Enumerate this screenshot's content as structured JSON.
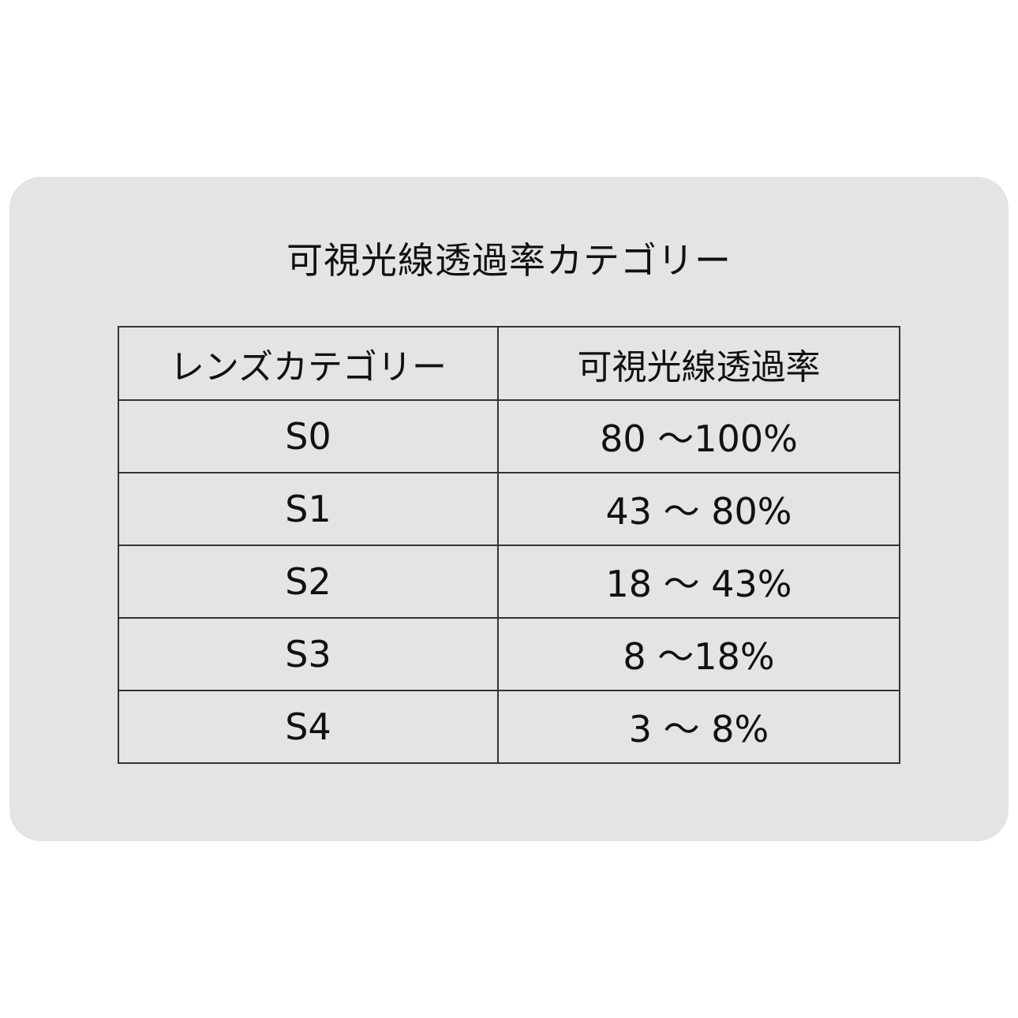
{
  "title": "可視光線透過率カテゴリー",
  "table": {
    "headers": [
      "レンズカテゴリー",
      "可視光線透過率"
    ],
    "rows": [
      {
        "category": "S0",
        "transmittance": "80 ～100%"
      },
      {
        "category": "S1",
        "transmittance": "43 ～ 80%"
      },
      {
        "category": "S2",
        "transmittance": "18 ～ 43%"
      },
      {
        "category": "S3",
        "transmittance": "8 ～18%"
      },
      {
        "category": "S4",
        "transmittance": "3 ～ 8%"
      }
    ]
  },
  "colors": {
    "card": "#e4e4e4",
    "border": "#333333",
    "text": "#111111"
  }
}
